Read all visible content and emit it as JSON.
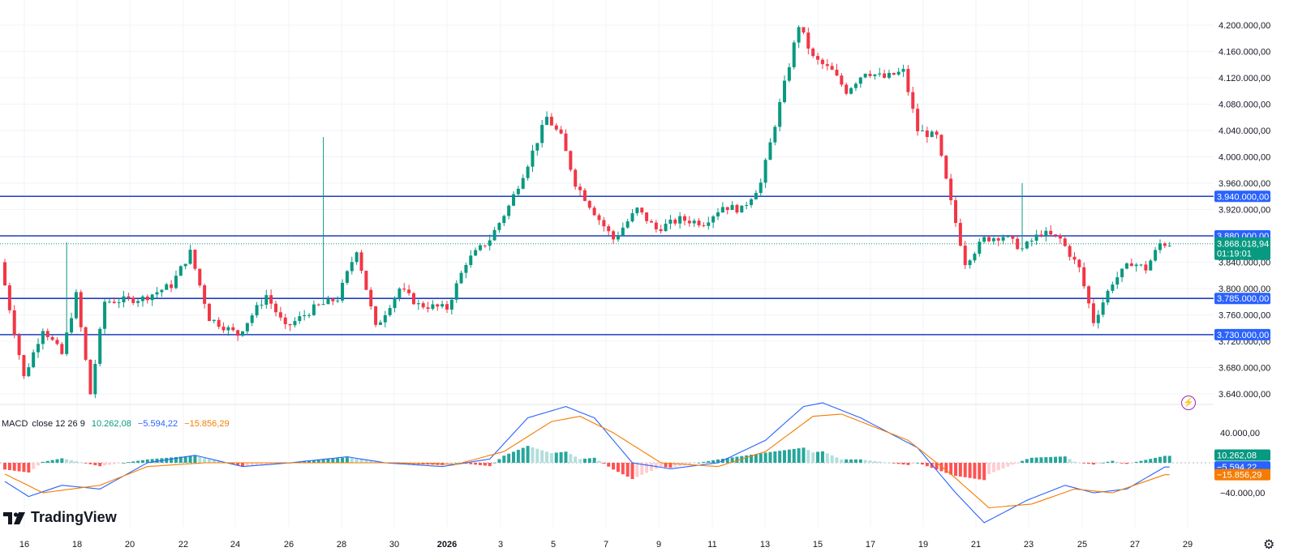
{
  "price_axis": {
    "ticks": [
      "4.200.000,00",
      "4.160.000,00",
      "4.120.000,00",
      "4.080.000,00",
      "4.040.000,00",
      "4.000.000,00",
      "3.960.000,00",
      "3.920.000,00",
      "3.840.000,00",
      "3.800.000,00",
      "3.760.000,00",
      "3.720.000,00",
      "3.680.000,00",
      "3.640.000,00"
    ],
    "tick_values": [
      4200000,
      4160000,
      4120000,
      4080000,
      4040000,
      4000000,
      3960000,
      3920000,
      3840000,
      3800000,
      3760000,
      3720000,
      3680000,
      3640000
    ],
    "levels": [
      {
        "label": "3.940.000,00",
        "value": 3940000
      },
      {
        "label": "3.880.000,00",
        "value": 3880000
      },
      {
        "label": "3.785.000,00",
        "value": 3785000
      },
      {
        "label": "3.730.000,00",
        "value": 3730000
      }
    ],
    "last_price": {
      "label": "3.868.018,94",
      "value": 3868018.94,
      "countdown": "01:19:01"
    },
    "range": [
      3625000,
      4245000
    ]
  },
  "macd": {
    "legend": {
      "name": "MACD",
      "params": "close 12 26 9",
      "hist": "10.262,08",
      "macd": "−5.594,22",
      "signal": "−15.856,29"
    },
    "axis_ticks": [
      "40.000,00",
      "−40.000,00"
    ],
    "axis_values": [
      40000,
      -40000
    ],
    "labels": [
      {
        "label": "10.262,08",
        "value": 10262.08,
        "color": "#089981"
      },
      {
        "label": "−5.594,22",
        "value": -5594.22,
        "color": "#2962ff"
      },
      {
        "label": "−15.856,29",
        "value": -15856.29,
        "color": "#f57c00"
      }
    ]
  },
  "x_axis": {
    "labels": [
      "16",
      "18",
      "20",
      "22",
      "24",
      "26",
      "28",
      "30",
      "2026",
      "3",
      "5",
      "7",
      "9",
      "11",
      "13",
      "15",
      "17",
      "19",
      "21",
      "23",
      "25",
      "27",
      "29"
    ]
  },
  "chart_data": {
    "type": "candlestick",
    "keypoints": [
      {
        "i": 0,
        "p": 3840000
      },
      {
        "i": 5,
        "p": 3665000
      },
      {
        "i": 9,
        "p": 3740000
      },
      {
        "i": 13,
        "p": 3700000
      },
      {
        "i": 16,
        "p": 3790000
      },
      {
        "i": 19,
        "p": 3640000
      },
      {
        "i": 22,
        "p": 3780000
      },
      {
        "i": 30,
        "p": 3785000
      },
      {
        "i": 36,
        "p": 3805000
      },
      {
        "i": 40,
        "p": 3855000
      },
      {
        "i": 44,
        "p": 3755000
      },
      {
        "i": 50,
        "p": 3730000
      },
      {
        "i": 56,
        "p": 3790000
      },
      {
        "i": 60,
        "p": 3740000
      },
      {
        "i": 66,
        "p": 3770000
      },
      {
        "i": 71,
        "p": 3785000
      },
      {
        "i": 75,
        "p": 3860000
      },
      {
        "i": 79,
        "p": 3740000
      },
      {
        "i": 84,
        "p": 3800000
      },
      {
        "i": 88,
        "p": 3775000
      },
      {
        "i": 94,
        "p": 3770000
      },
      {
        "i": 98,
        "p": 3840000
      },
      {
        "i": 103,
        "p": 3875000
      },
      {
        "i": 107,
        "p": 3925000
      },
      {
        "i": 111,
        "p": 3990000
      },
      {
        "i": 115,
        "p": 4060000
      },
      {
        "i": 118,
        "p": 4030000
      },
      {
        "i": 121,
        "p": 3960000
      },
      {
        "i": 126,
        "p": 3905000
      },
      {
        "i": 129,
        "p": 3875000
      },
      {
        "i": 134,
        "p": 3920000
      },
      {
        "i": 138,
        "p": 3890000
      },
      {
        "i": 143,
        "p": 3905000
      },
      {
        "i": 148,
        "p": 3900000
      },
      {
        "i": 152,
        "p": 3925000
      },
      {
        "i": 156,
        "p": 3920000
      },
      {
        "i": 160,
        "p": 3960000
      },
      {
        "i": 164,
        "p": 4080000
      },
      {
        "i": 168,
        "p": 4200000
      },
      {
        "i": 171,
        "p": 4150000
      },
      {
        "i": 175,
        "p": 4130000
      },
      {
        "i": 178,
        "p": 4100000
      },
      {
        "i": 182,
        "p": 4130000
      },
      {
        "i": 186,
        "p": 4120000
      },
      {
        "i": 190,
        "p": 4130000
      },
      {
        "i": 193,
        "p": 4040000
      },
      {
        "i": 197,
        "p": 4030000
      },
      {
        "i": 200,
        "p": 3930000
      },
      {
        "i": 203,
        "p": 3840000
      },
      {
        "i": 207,
        "p": 3875000
      },
      {
        "i": 211,
        "p": 3880000
      },
      {
        "i": 215,
        "p": 3860000
      },
      {
        "i": 219,
        "p": 3885000
      },
      {
        "i": 223,
        "p": 3875000
      },
      {
        "i": 227,
        "p": 3830000
      },
      {
        "i": 230,
        "p": 3750000
      },
      {
        "i": 234,
        "p": 3810000
      },
      {
        "i": 238,
        "p": 3840000
      },
      {
        "i": 241,
        "p": 3830000
      },
      {
        "i": 244,
        "p": 3868000
      }
    ],
    "notable_wicks": [
      {
        "i": 67,
        "high": 4030000
      },
      {
        "i": 13,
        "high": 3870000
      },
      {
        "i": 214,
        "high": 3960000
      }
    ],
    "macd_line": [
      [
        0,
        -25000
      ],
      [
        5,
        -45000
      ],
      [
        12,
        -30000
      ],
      [
        20,
        -35000
      ],
      [
        30,
        0
      ],
      [
        40,
        10000
      ],
      [
        50,
        -5000
      ],
      [
        60,
        0
      ],
      [
        72,
        8000
      ],
      [
        80,
        0
      ],
      [
        92,
        -5000
      ],
      [
        102,
        5000
      ],
      [
        110,
        60000
      ],
      [
        118,
        75000
      ],
      [
        124,
        60000
      ],
      [
        132,
        0
      ],
      [
        140,
        -8000
      ],
      [
        150,
        0
      ],
      [
        160,
        30000
      ],
      [
        168,
        75000
      ],
      [
        172,
        80000
      ],
      [
        180,
        60000
      ],
      [
        192,
        20000
      ],
      [
        200,
        -40000
      ],
      [
        206,
        -80000
      ],
      [
        215,
        -50000
      ],
      [
        223,
        -30000
      ],
      [
        229,
        -40000
      ],
      [
        236,
        -35000
      ],
      [
        244,
        -5594
      ]
    ],
    "signal_line": [
      [
        0,
        -15000
      ],
      [
        8,
        -40000
      ],
      [
        20,
        -30000
      ],
      [
        30,
        -5000
      ],
      [
        42,
        0
      ],
      [
        55,
        0
      ],
      [
        70,
        0
      ],
      [
        82,
        0
      ],
      [
        95,
        -2000
      ],
      [
        105,
        15000
      ],
      [
        115,
        55000
      ],
      [
        121,
        62000
      ],
      [
        128,
        40000
      ],
      [
        138,
        0
      ],
      [
        150,
        -5000
      ],
      [
        160,
        15000
      ],
      [
        170,
        62000
      ],
      [
        176,
        65000
      ],
      [
        190,
        30000
      ],
      [
        199,
        -15000
      ],
      [
        207,
        -60000
      ],
      [
        216,
        -55000
      ],
      [
        225,
        -35000
      ],
      [
        233,
        -40000
      ],
      [
        244,
        -15856
      ]
    ]
  }
}
